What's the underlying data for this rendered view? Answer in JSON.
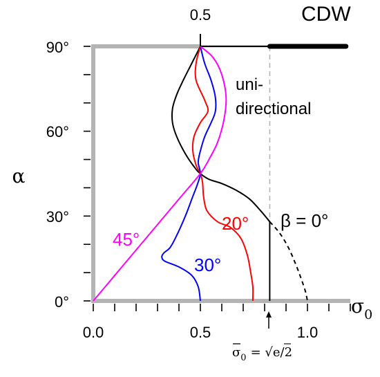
{
  "chart_data": {
    "type": "line",
    "title": "",
    "xlabel": "σ0",
    "ylabel": "α",
    "xlim": [
      0.0,
      1.2
    ],
    "ylim": [
      0,
      90
    ],
    "x_tick_labels": [
      "0.0",
      "0.5",
      "1.0"
    ],
    "y_tick_labels": [
      "0°",
      "30°",
      "60°",
      "90°"
    ],
    "top_tick_label": "0.5",
    "grid": false,
    "annotations": {
      "cdw": "CDW",
      "unidirectional_line1": "uni-",
      "unidirectional_line2": "directional",
      "beta0": "β = 0°",
      "beta20": "20°",
      "beta30": "30°",
      "beta45": "45°",
      "sigma_bar_lhs": "σ",
      "sigma_bar_sub": "0",
      "sigma_bar_rhs": "= √e/2",
      "sigma_bar_value": 0.824
    },
    "colors": {
      "beta0": "#000000",
      "beta20": "#ff0000",
      "beta30": "#0000ff",
      "beta45": "#ff00ff",
      "boundary": "#b4b4b4",
      "guide": "#b4b4b4"
    },
    "series": [
      {
        "name": "β = 0°",
        "color": "#000000",
        "points": [
          [
            0.5,
            90
          ],
          [
            0.46,
            84
          ],
          [
            0.42,
            78
          ],
          [
            0.39,
            73
          ],
          [
            0.37,
            68
          ],
          [
            0.37,
            63
          ],
          [
            0.39,
            58
          ],
          [
            0.43,
            52
          ],
          [
            0.475,
            47
          ],
          [
            0.5,
            45
          ],
          [
            0.54,
            43
          ],
          [
            0.6,
            41.5
          ],
          [
            0.67,
            39
          ],
          [
            0.73,
            36
          ],
          [
            0.78,
            32
          ],
          [
            0.824,
            28
          ]
        ]
      },
      {
        "name": "β = 0° (extension)",
        "color": "#000000",
        "dashed": true,
        "points": [
          [
            0.824,
            28
          ],
          [
            0.87,
            24
          ],
          [
            0.91,
            19
          ],
          [
            0.945,
            13
          ],
          [
            0.97,
            8
          ],
          [
            0.99,
            3.5
          ],
          [
            1.0,
            0
          ]
        ]
      },
      {
        "name": "β = 0° (vertical)",
        "color": "#000000",
        "points": [
          [
            0.824,
            28
          ],
          [
            0.824,
            0
          ]
        ]
      },
      {
        "name": "20°",
        "color": "#ff0000",
        "points": [
          [
            0.5,
            90
          ],
          [
            0.48,
            84
          ],
          [
            0.48,
            78
          ],
          [
            0.52,
            71
          ],
          [
            0.535,
            67
          ],
          [
            0.5,
            63
          ],
          [
            0.47,
            58
          ],
          [
            0.465,
            53
          ],
          [
            0.48,
            48
          ],
          [
            0.5,
            45
          ],
          [
            0.51,
            42
          ],
          [
            0.515,
            37
          ],
          [
            0.53,
            32
          ],
          [
            0.58,
            28
          ],
          [
            0.64,
            26
          ],
          [
            0.69,
            22
          ],
          [
            0.72,
            16
          ],
          [
            0.735,
            10
          ],
          [
            0.745,
            5
          ],
          [
            0.745,
            0
          ]
        ]
      },
      {
        "name": "30°",
        "color": "#0000ff",
        "points": [
          [
            0.5,
            90
          ],
          [
            0.52,
            84
          ],
          [
            0.55,
            78
          ],
          [
            0.57,
            72
          ],
          [
            0.57,
            67
          ],
          [
            0.55,
            63
          ],
          [
            0.52,
            58
          ],
          [
            0.5,
            53
          ],
          [
            0.49,
            49
          ],
          [
            0.5,
            45
          ],
          [
            0.485,
            41
          ],
          [
            0.46,
            36
          ],
          [
            0.43,
            30
          ],
          [
            0.395,
            24
          ],
          [
            0.36,
            19
          ],
          [
            0.33,
            17
          ],
          [
            0.32,
            15.5
          ],
          [
            0.335,
            14
          ],
          [
            0.4,
            12
          ],
          [
            0.46,
            9
          ],
          [
            0.49,
            5
          ],
          [
            0.5,
            0
          ]
        ]
      },
      {
        "name": "45°",
        "color": "#ff00ff",
        "points": [
          [
            0.5,
            90
          ],
          [
            0.56,
            86
          ],
          [
            0.6,
            80
          ],
          [
            0.62,
            72
          ],
          [
            0.61,
            64
          ],
          [
            0.58,
            56
          ],
          [
            0.54,
            50
          ],
          [
            0.5,
            45
          ],
          [
            0.4,
            36
          ],
          [
            0.3,
            27
          ],
          [
            0.2,
            18
          ],
          [
            0.1,
            9
          ],
          [
            0.0,
            0
          ]
        ]
      }
    ]
  }
}
